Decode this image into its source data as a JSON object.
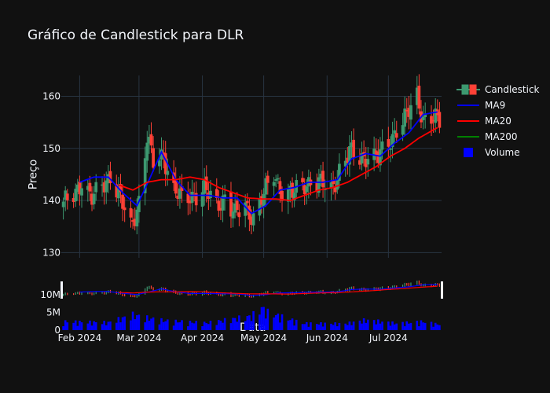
{
  "chart_data": {
    "type": "candlestick",
    "title": "Gráfico de Candlestick para DLR",
    "xlabel": "Data",
    "ylabel": "Preço",
    "x_range": [
      "2024-01-23",
      "2024-07-27"
    ],
    "price_ylim": [
      129,
      164
    ],
    "price_ticks": [
      130,
      140,
      150,
      160
    ],
    "volume_ticks": [
      0,
      5000000,
      10000000
    ],
    "volume_tick_labels": [
      "0",
      "5M",
      "10M"
    ],
    "x_ticks": [
      "2024-02-01",
      "2024-03-01",
      "2024-04-01",
      "2024-05-01",
      "2024-06-01",
      "2024-07-01"
    ],
    "x_tick_labels": [
      "Feb 2024",
      "Mar 2024",
      "Apr 2024",
      "May 2024",
      "Jun 2024",
      "Jul 2024"
    ],
    "grid": true,
    "legend_position": "top-right",
    "legend": [
      "Candlestick",
      "MA9",
      "MA20",
      "MA200",
      "Volume"
    ],
    "colors": {
      "increasing": "#3d9970",
      "decreasing": "#ff4136",
      "ma9": "#0000ff",
      "ma20": "#ff0000",
      "ma200": "#008000",
      "volume": "#0000ff",
      "background": "#111111",
      "grid": "#283442",
      "text": "#f2f5fa"
    },
    "close_anchors": [
      [
        "2024-01-24",
        139
      ],
      [
        "2024-01-29",
        141
      ],
      [
        "2024-02-02",
        144
      ],
      [
        "2024-02-07",
        140
      ],
      [
        "2024-02-12",
        143
      ],
      [
        "2024-02-16",
        145
      ],
      [
        "2024-02-21",
        140
      ],
      [
        "2024-02-26",
        135
      ],
      [
        "2024-03-01",
        140
      ],
      [
        "2024-03-05",
        152
      ],
      [
        "2024-03-08",
        147
      ],
      [
        "2024-03-13",
        149
      ],
      [
        "2024-03-18",
        142
      ],
      [
        "2024-03-22",
        140
      ],
      [
        "2024-03-27",
        141
      ],
      [
        "2024-04-02",
        142
      ],
      [
        "2024-04-08",
        139
      ],
      [
        "2024-04-12",
        141
      ],
      [
        "2024-04-17",
        137
      ],
      [
        "2024-04-22",
        139
      ],
      [
        "2024-04-26",
        137
      ],
      [
        "2024-05-01",
        141
      ],
      [
        "2024-05-06",
        145
      ],
      [
        "2024-05-10",
        142
      ],
      [
        "2024-05-15",
        141
      ],
      [
        "2024-05-20",
        143
      ],
      [
        "2024-05-24",
        144
      ],
      [
        "2024-05-29",
        143
      ],
      [
        "2024-06-03",
        142
      ],
      [
        "2024-06-07",
        146
      ],
      [
        "2024-06-12",
        149
      ],
      [
        "2024-06-17",
        148
      ],
      [
        "2024-06-21",
        149
      ],
      [
        "2024-06-26",
        148
      ],
      [
        "2024-07-01",
        151
      ],
      [
        "2024-07-05",
        154
      ],
      [
        "2024-07-10",
        156
      ],
      [
        "2024-07-15",
        160
      ],
      [
        "2024-07-18",
        156
      ],
      [
        "2024-07-22",
        156
      ],
      [
        "2024-07-25",
        155
      ]
    ],
    "ma9_anchors": [
      [
        "2024-02-01",
        143.5
      ],
      [
        "2024-02-08",
        144.5
      ],
      [
        "2024-02-15",
        144.5
      ],
      [
        "2024-02-22",
        141.5
      ],
      [
        "2024-02-29",
        139
      ],
      [
        "2024-03-06",
        144
      ],
      [
        "2024-03-12",
        149.3
      ],
      [
        "2024-03-19",
        144
      ],
      [
        "2024-03-26",
        141
      ],
      [
        "2024-04-04",
        141
      ],
      [
        "2024-04-11",
        140.5
      ],
      [
        "2024-04-18",
        140.5
      ],
      [
        "2024-04-25",
        137.5
      ],
      [
        "2024-05-02",
        139
      ],
      [
        "2024-05-09",
        142
      ],
      [
        "2024-05-16",
        142.5
      ],
      [
        "2024-05-23",
        143.5
      ],
      [
        "2024-05-30",
        143.5
      ],
      [
        "2024-06-06",
        144
      ],
      [
        "2024-06-13",
        148
      ],
      [
        "2024-06-20",
        149
      ],
      [
        "2024-06-27",
        148.5
      ],
      [
        "2024-07-04",
        151
      ],
      [
        "2024-07-11",
        153
      ],
      [
        "2024-07-18",
        156.5
      ],
      [
        "2024-07-25",
        157
      ]
    ],
    "ma20_anchors": [
      [
        "2024-02-20",
        143
      ],
      [
        "2024-02-27",
        142
      ],
      [
        "2024-03-05",
        143.5
      ],
      [
        "2024-03-12",
        144
      ],
      [
        "2024-03-19",
        144
      ],
      [
        "2024-03-26",
        144.5
      ],
      [
        "2024-04-02",
        144
      ],
      [
        "2024-04-09",
        142.5
      ],
      [
        "2024-04-16",
        141.5
      ],
      [
        "2024-04-23",
        140.5
      ],
      [
        "2024-04-30",
        140.3
      ],
      [
        "2024-05-07",
        140.3
      ],
      [
        "2024-05-14",
        140
      ],
      [
        "2024-05-21",
        141
      ],
      [
        "2024-05-28",
        142
      ],
      [
        "2024-06-04",
        142.5
      ],
      [
        "2024-06-11",
        143.5
      ],
      [
        "2024-06-18",
        145
      ],
      [
        "2024-06-25",
        146.5
      ],
      [
        "2024-07-02",
        148.5
      ],
      [
        "2024-07-09",
        150
      ],
      [
        "2024-07-16",
        152
      ],
      [
        "2024-07-25",
        154
      ]
    ],
    "volume_anchors": [
      [
        "2024-01-24",
        2000000
      ],
      [
        "2024-02-15",
        1800000
      ],
      [
        "2024-02-27",
        3600000
      ],
      [
        "2024-03-06",
        2800000
      ],
      [
        "2024-03-14",
        2200000
      ],
      [
        "2024-04-03",
        1700000
      ],
      [
        "2024-04-25",
        3300000
      ],
      [
        "2024-04-30",
        5300000
      ],
      [
        "2024-05-03",
        4200000
      ],
      [
        "2024-05-20",
        1600000
      ],
      [
        "2024-06-10",
        1500000
      ],
      [
        "2024-06-20",
        2400000
      ],
      [
        "2024-07-05",
        1600000
      ],
      [
        "2024-07-18",
        2000000
      ],
      [
        "2024-07-25",
        1400000
      ]
    ]
  }
}
